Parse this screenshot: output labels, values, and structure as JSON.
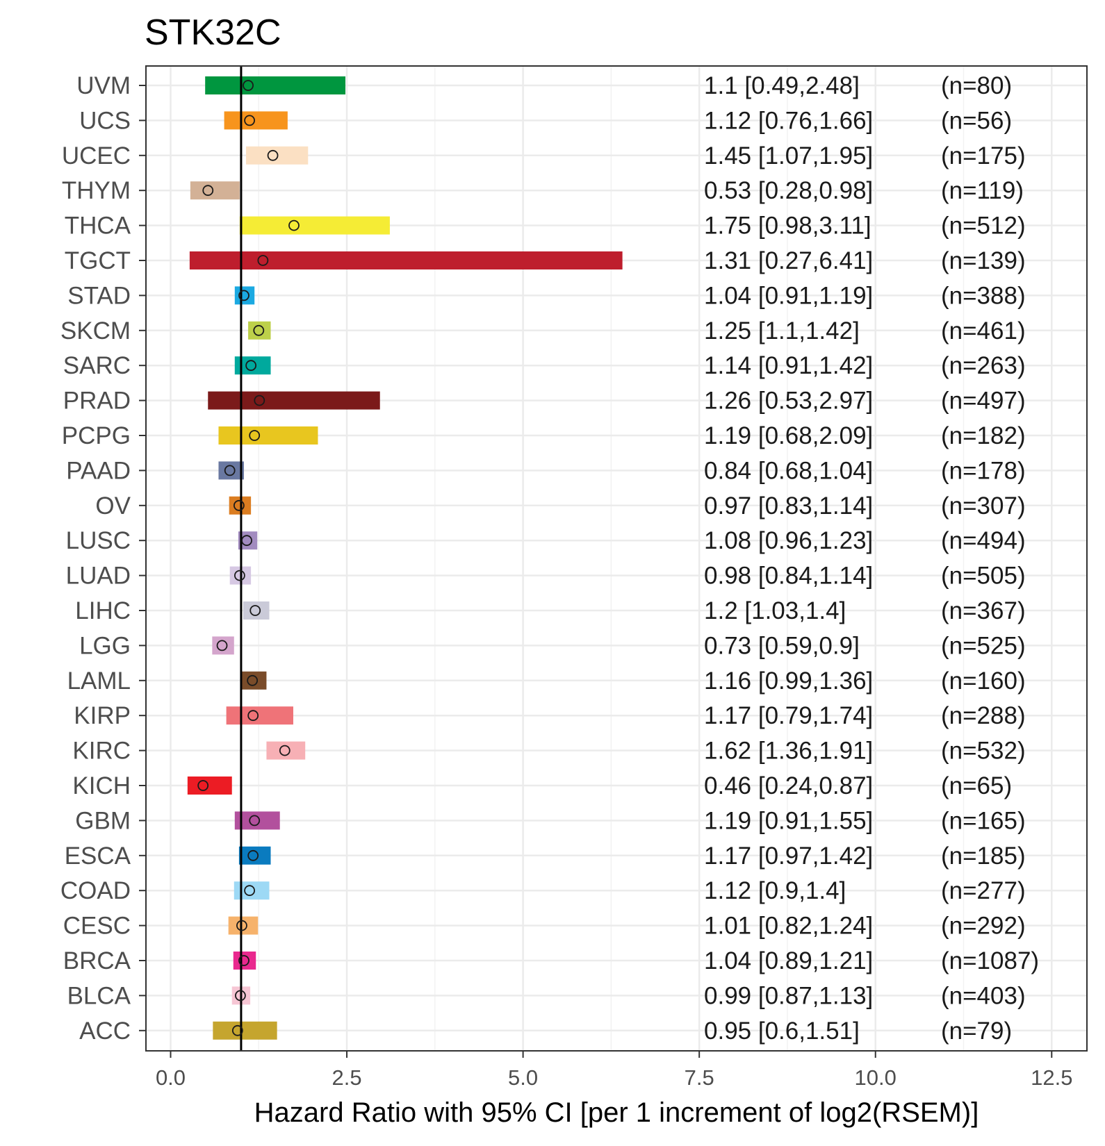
{
  "chart_data": {
    "type": "forest",
    "title": "STK32C",
    "xlabel": "Hazard Ratio with 95% CI [per 1 increment of log2(RSEM)]",
    "ylabel": "",
    "xlim": [
      -0.35,
      13.0
    ],
    "x_ticks": [
      0.0,
      2.5,
      5.0,
      7.5,
      10.0,
      12.5
    ],
    "x_tick_labels": [
      "0.0",
      "2.5",
      "5.0",
      "7.5",
      "10.0",
      "12.5"
    ],
    "reference_line": 1,
    "grid": true,
    "rows": [
      {
        "label": "UVM",
        "hr": 1.1,
        "lower": 0.49,
        "upper": 2.48,
        "ci_text": "1.1 [0.49,2.48]",
        "n_text": "(n=80)",
        "color": "#00963F"
      },
      {
        "label": "UCS",
        "hr": 1.12,
        "lower": 0.76,
        "upper": 1.66,
        "ci_text": "1.12 [0.76,1.66]",
        "n_text": "(n=56)",
        "color": "#F7941D"
      },
      {
        "label": "UCEC",
        "hr": 1.45,
        "lower": 1.07,
        "upper": 1.95,
        "ci_text": "1.45 [1.07,1.95]",
        "n_text": "(n=175)",
        "color": "#FBE0C3"
      },
      {
        "label": "THYM",
        "hr": 0.53,
        "lower": 0.28,
        "upper": 0.98,
        "ci_text": "0.53 [0.28,0.98]",
        "n_text": "(n=119)",
        "color": "#D3B196"
      },
      {
        "label": "THCA",
        "hr": 1.75,
        "lower": 0.98,
        "upper": 3.11,
        "ci_text": "1.75 [0.98,3.11]",
        "n_text": "(n=512)",
        "color": "#F5EC35"
      },
      {
        "label": "TGCT",
        "hr": 1.31,
        "lower": 0.27,
        "upper": 6.41,
        "ci_text": "1.31 [0.27,6.41]",
        "n_text": "(n=139)",
        "color": "#BE1E2D"
      },
      {
        "label": "STAD",
        "hr": 1.04,
        "lower": 0.91,
        "upper": 1.19,
        "ci_text": "1.04 [0.91,1.19]",
        "n_text": "(n=388)",
        "color": "#1BA9E1"
      },
      {
        "label": "SKCM",
        "hr": 1.25,
        "lower": 1.1,
        "upper": 1.42,
        "ci_text": "1.25 [1.1,1.42]",
        "n_text": "(n=461)",
        "color": "#BDD04A"
      },
      {
        "label": "SARC",
        "hr": 1.14,
        "lower": 0.91,
        "upper": 1.42,
        "ci_text": "1.14 [0.91,1.42]",
        "n_text": "(n=263)",
        "color": "#00A99D"
      },
      {
        "label": "PRAD",
        "hr": 1.26,
        "lower": 0.53,
        "upper": 2.97,
        "ci_text": "1.26 [0.53,2.97]",
        "n_text": "(n=497)",
        "color": "#7B1A1A"
      },
      {
        "label": "PCPG",
        "hr": 1.19,
        "lower": 0.68,
        "upper": 2.09,
        "ci_text": "1.19 [0.68,2.09]",
        "n_text": "(n=182)",
        "color": "#E8C61F"
      },
      {
        "label": "PAAD",
        "hr": 0.84,
        "lower": 0.68,
        "upper": 1.04,
        "ci_text": "0.84 [0.68,1.04]",
        "n_text": "(n=178)",
        "color": "#6978A1"
      },
      {
        "label": "OV",
        "hr": 0.97,
        "lower": 0.83,
        "upper": 1.14,
        "ci_text": "0.97 [0.83,1.14]",
        "n_text": "(n=307)",
        "color": "#DB7D21"
      },
      {
        "label": "LUSC",
        "hr": 1.08,
        "lower": 0.96,
        "upper": 1.23,
        "ci_text": "1.08 [0.96,1.23]",
        "n_text": "(n=494)",
        "color": "#A28BBF"
      },
      {
        "label": "LUAD",
        "hr": 0.98,
        "lower": 0.84,
        "upper": 1.14,
        "ci_text": "0.98 [0.84,1.14]",
        "n_text": "(n=505)",
        "color": "#D6C8E3"
      },
      {
        "label": "LIHC",
        "hr": 1.2,
        "lower": 1.03,
        "upper": 1.4,
        "ci_text": "1.2 [1.03,1.4]",
        "n_text": "(n=367)",
        "color": "#CACAD8"
      },
      {
        "label": "LGG",
        "hr": 0.73,
        "lower": 0.59,
        "upper": 0.9,
        "ci_text": "0.73 [0.59,0.9]",
        "n_text": "(n=525)",
        "color": "#D4A5CC"
      },
      {
        "label": "LAML",
        "hr": 1.16,
        "lower": 0.99,
        "upper": 1.36,
        "ci_text": "1.16 [0.99,1.36]",
        "n_text": "(n=160)",
        "color": "#7A4C2A"
      },
      {
        "label": "KIRP",
        "hr": 1.17,
        "lower": 0.79,
        "upper": 1.74,
        "ci_text": "1.17 [0.79,1.74]",
        "n_text": "(n=288)",
        "color": "#EF7378"
      },
      {
        "label": "KIRC",
        "hr": 1.62,
        "lower": 1.36,
        "upper": 1.91,
        "ci_text": "1.62 [1.36,1.91]",
        "n_text": "(n=532)",
        "color": "#F7B0B5"
      },
      {
        "label": "KICH",
        "hr": 0.46,
        "lower": 0.24,
        "upper": 0.87,
        "ci_text": "0.46 [0.24,0.87]",
        "n_text": "(n=65)",
        "color": "#EC1C24"
      },
      {
        "label": "GBM",
        "hr": 1.19,
        "lower": 0.91,
        "upper": 1.55,
        "ci_text": "1.19 [0.91,1.55]",
        "n_text": "(n=165)",
        "color": "#B2509D"
      },
      {
        "label": "ESCA",
        "hr": 1.17,
        "lower": 0.97,
        "upper": 1.42,
        "ci_text": "1.17 [0.97,1.42]",
        "n_text": "(n=185)",
        "color": "#0A7BBF"
      },
      {
        "label": "COAD",
        "hr": 1.12,
        "lower": 0.9,
        "upper": 1.4,
        "ci_text": "1.12 [0.9,1.4]",
        "n_text": "(n=277)",
        "color": "#9DD9F5"
      },
      {
        "label": "CESC",
        "hr": 1.01,
        "lower": 0.82,
        "upper": 1.24,
        "ci_text": "1.01 [0.82,1.24]",
        "n_text": "(n=292)",
        "color": "#F6B26B"
      },
      {
        "label": "BRCA",
        "hr": 1.04,
        "lower": 0.89,
        "upper": 1.21,
        "ci_text": "1.04 [0.89,1.21]",
        "n_text": "(n=1087)",
        "color": "#E9288E"
      },
      {
        "label": "BLCA",
        "hr": 0.99,
        "lower": 0.87,
        "upper": 1.13,
        "ci_text": "0.99 [0.87,1.13]",
        "n_text": "(n=403)",
        "color": "#F6C6D4"
      },
      {
        "label": "ACC",
        "hr": 0.95,
        "lower": 0.6,
        "upper": 1.51,
        "ci_text": "0.95 [0.6,1.51]",
        "n_text": "(n=79)",
        "color": "#C5A52E"
      }
    ]
  }
}
